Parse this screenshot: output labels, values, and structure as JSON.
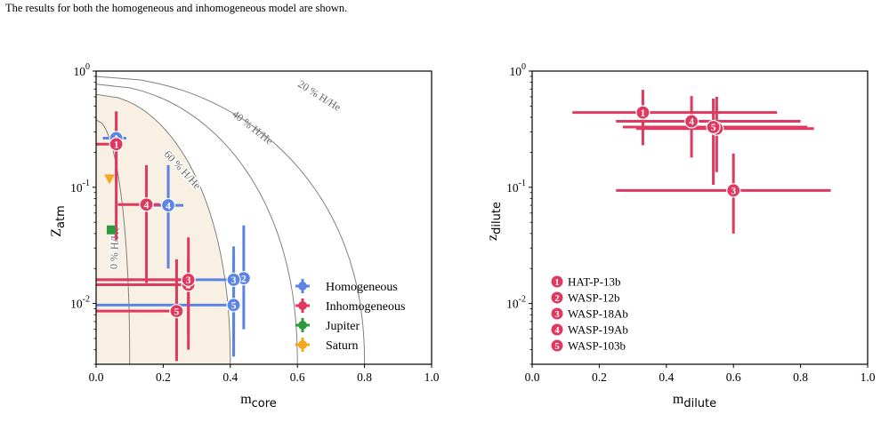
{
  "caption": "The results for both the homogeneous and inhomogeneous model are shown.",
  "colors": {
    "homogeneous": "#5b84e6",
    "inhomogeneous": "#e0395f",
    "jupiter": "#2e9a3e",
    "saturn": "#f5a623",
    "region_fill": "#f8f0e2",
    "contour": "#808080"
  },
  "chart_data": [
    {
      "type": "scatter",
      "title": "",
      "xlabel_main": "m",
      "xlabel_sub": "core",
      "ylabel_main": "Z",
      "ylabel_sub": "atm",
      "xlim": [
        0,
        1
      ],
      "ylim": [
        0.003,
        1
      ],
      "yscale": "log",
      "x_ticks": [
        "0.0",
        "0.2",
        "0.4",
        "0.6",
        "0.8",
        "1.0"
      ],
      "y_ticks": [
        {
          "base": "10",
          "exp": "0",
          "value": 1
        },
        {
          "base": "10",
          "exp": "-1",
          "value": 0.1
        },
        {
          "base": "10",
          "exp": "-2",
          "value": 0.01
        }
      ],
      "contours": [
        {
          "label": "0 % H/He",
          "x_at_low": 0.1,
          "z0": 0.38
        },
        {
          "label": "60 % H/He",
          "x_at_low": 0.4,
          "z0": 0.63
        },
        {
          "label": "40 % H/He",
          "x_at_low": 0.6,
          "z0": 0.77
        },
        {
          "label": "20 % H/He",
          "x_at_low": 0.8,
          "z0": 0.9
        }
      ],
      "series": [
        {
          "name": "Homogeneous",
          "color_key": "homogeneous",
          "points": [
            {
              "id": "1",
              "x": 0.06,
              "y": 0.265,
              "xerr": [
                0.09,
                0.02
              ],
              "yerr": [
                0.11,
                0.44
              ]
            },
            {
              "id": "2",
              "x": 0.44,
              "y": 0.0165,
              "xerr": [
                0.46,
                0.44
              ],
              "yerr": [
                0.006,
                0.047
              ]
            },
            {
              "id": "3",
              "x": 0.41,
              "y": 0.016,
              "xerr": [
                0.0,
                0.42
              ],
              "yerr": [
                0.0035,
                0.031
              ]
            },
            {
              "id": "4",
              "x": 0.215,
              "y": 0.07,
              "xerr": [
                0.15,
                0.26
              ],
              "yerr": [
                0.02,
                0.155
              ]
            },
            {
              "id": "5",
              "x": 0.41,
              "y": 0.0097,
              "xerr": [
                0.0,
                0.42
              ],
              "yerr": [
                0.0035,
                0.025
              ]
            }
          ]
        },
        {
          "name": "Inhomogeneous",
          "color_key": "inhomogeneous",
          "points": [
            {
              "id": "1",
              "x": 0.06,
              "y": 0.235,
              "xerr": [
                0.0,
                0.065
              ],
              "yerr": [
                0.035,
                0.45
              ]
            },
            {
              "id": "2",
              "x": 0.275,
              "y": 0.0145,
              "xerr": [
                0.0,
                0.275
              ],
              "yerr": [
                0.004,
                0.037
              ]
            },
            {
              "id": "3",
              "x": 0.275,
              "y": 0.016,
              "xerr": [
                0.0,
                0.275
              ],
              "yerr": [
                0.0055,
                0.024
              ]
            },
            {
              "id": "4",
              "x": 0.15,
              "y": 0.071,
              "xerr": [
                0.065,
                0.19
              ],
              "yerr": [
                0.015,
                0.155
              ]
            },
            {
              "id": "5",
              "x": 0.24,
              "y": 0.0086,
              "xerr": [
                0.0,
                0.24
              ],
              "yerr": [
                0.0032,
                0.024
              ]
            }
          ]
        },
        {
          "name": "Jupiter",
          "color_key": "jupiter",
          "marker": "square",
          "points": [
            {
              "x": 0.045,
              "y": 0.043
            }
          ]
        },
        {
          "name": "Saturn",
          "color_key": "saturn",
          "marker": "triangle-down",
          "points": [
            {
              "x": 0.04,
              "y": 0.118
            }
          ]
        }
      ],
      "legend": {
        "placement": "lower-right",
        "entries": [
          {
            "label": "Homogeneous",
            "color_key": "homogeneous"
          },
          {
            "label": "Inhomogeneous",
            "color_key": "inhomogeneous"
          },
          {
            "label": "Jupiter",
            "color_key": "jupiter"
          },
          {
            "label": "Saturn",
            "color_key": "saturn"
          }
        ]
      }
    },
    {
      "type": "scatter",
      "title": "",
      "xlabel_main": "m",
      "xlabel_sub": "dilute",
      "ylabel_main": "z",
      "ylabel_sub": "dilute",
      "xlim": [
        0,
        1
      ],
      "ylim": [
        0.003,
        1
      ],
      "yscale": "log",
      "x_ticks": [
        "0.0",
        "0.2",
        "0.4",
        "0.6",
        "0.8",
        "1.0"
      ],
      "y_ticks": [
        {
          "base": "10",
          "exp": "0",
          "value": 1
        },
        {
          "base": "10",
          "exp": "-1",
          "value": 0.1
        },
        {
          "base": "10",
          "exp": "-2",
          "value": 0.01
        }
      ],
      "series": [
        {
          "name": "Inhomogeneous",
          "color_key": "inhomogeneous",
          "points": [
            {
              "id": "1",
              "x": 0.33,
              "y": 0.44,
              "xerr": [
                0.12,
                0.73
              ],
              "yerr": [
                0.23,
                0.69
              ]
            },
            {
              "id": "2",
              "x": 0.55,
              "y": 0.32,
              "xerr": [
                0.31,
                0.84
              ],
              "yerr": [
                0.135,
                0.6
              ]
            },
            {
              "id": "3",
              "x": 0.6,
              "y": 0.094,
              "xerr": [
                0.25,
                0.89
              ],
              "yerr": [
                0.04,
                0.195
              ]
            },
            {
              "id": "4",
              "x": 0.475,
              "y": 0.37,
              "xerr": [
                0.25,
                0.8
              ],
              "yerr": [
                0.18,
                0.61
              ]
            },
            {
              "id": "5",
              "x": 0.54,
              "y": 0.33,
              "xerr": [
                0.27,
                0.82
              ],
              "yerr": [
                0.105,
                0.58
              ]
            }
          ]
        }
      ],
      "legend": {
        "placement": "lower-left",
        "entries": [
          {
            "id": "1",
            "label": "HAT-P-13b"
          },
          {
            "id": "2",
            "label": "WASP-12b"
          },
          {
            "id": "3",
            "label": "WASP-18Ab"
          },
          {
            "id": "4",
            "label": "WASP-19Ab"
          },
          {
            "id": "5",
            "label": "WASP-103b"
          }
        ]
      }
    }
  ]
}
